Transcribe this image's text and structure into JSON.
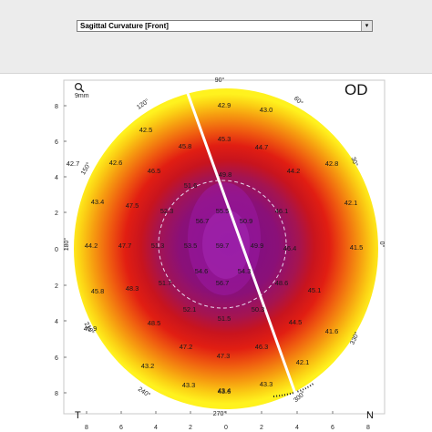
{
  "header": {
    "map_type": "Sagittal Curvature [Front]",
    "dropdown_arrow": "▾"
  },
  "map": {
    "eye": "OD",
    "scale_label": "9mm",
    "corner_left": "T",
    "corner_right": "N",
    "ticks": {
      "left": [
        "8",
        "6",
        "4",
        "2",
        "0",
        "2",
        "4",
        "6",
        "8"
      ],
      "bottom": [
        "8",
        "6",
        "4",
        "2",
        "0",
        "2",
        "4",
        "6",
        "8"
      ]
    },
    "angles": [
      {
        "label": "90°"
      },
      {
        "label": "60°"
      },
      {
        "label": "30°"
      },
      {
        "label": "0°"
      },
      {
        "label": "330°"
      },
      {
        "label": "300°"
      },
      {
        "label": "270°"
      },
      {
        "label": "240°"
      },
      {
        "label": "210°"
      },
      {
        "label": "180°"
      },
      {
        "label": "150°"
      },
      {
        "label": "120°"
      }
    ],
    "values": [
      "42.9",
      "43.0",
      "42.5",
      "45.3",
      "44.7",
      "45.8",
      "42.8",
      "46.5",
      "49.8",
      "44.2",
      "42.7",
      "42.6",
      "51.6",
      "43.4",
      "47.5",
      "52.3",
      "55.5",
      "46.1",
      "42.1",
      "56.7",
      "50.9",
      "44.2",
      "47.7",
      "51.3",
      "53.5",
      "59.7",
      "49.9",
      "46.4",
      "41.5",
      "54.6",
      "54.3",
      "45.8",
      "48.3",
      "51.7",
      "56.7",
      "48.6",
      "45.1",
      "52.1",
      "50.3",
      "51.5",
      "48.5",
      "45.9",
      "41.6",
      "44.5",
      "47.2",
      "46.3",
      "43.2",
      "47.3",
      "43.3",
      "43.4",
      "42.1",
      "43.6",
      "43.3"
    ]
  }
}
